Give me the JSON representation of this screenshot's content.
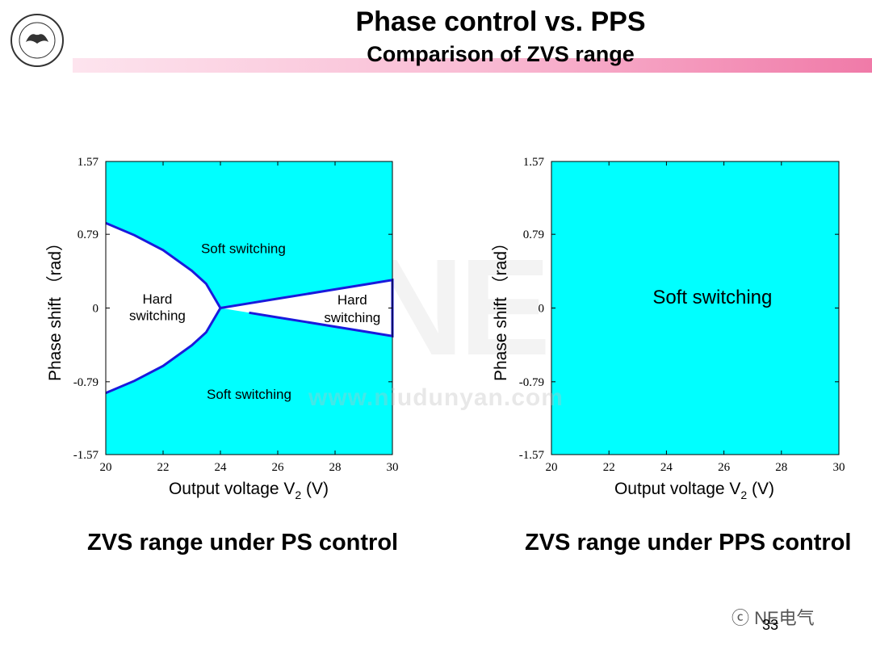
{
  "header": {
    "title": "Phase control vs. PPS",
    "subtitle": "Comparison of ZVS range"
  },
  "captions": {
    "left": "ZVS range under PS control",
    "right": "ZVS range under PPS control"
  },
  "watermark": {
    "text": "www.niudunyan.com",
    "logo_text": "NE"
  },
  "footer": {
    "brand": "NE电气",
    "page_number": "33"
  },
  "colors": {
    "soft_region": "#00ffff",
    "boundary": "#1a1adc",
    "hard_region": "#ffffff",
    "header_band": "#f07aa8"
  },
  "chart_data": [
    {
      "type": "area",
      "title": "",
      "xlabel_main": "Output voltage V",
      "xlabel_sub": "2",
      "xlabel_unit": " (V)",
      "ylabel": "Phase shift （rad）",
      "xlim": [
        20,
        30
      ],
      "ylim": [
        -1.57,
        1.57
      ],
      "x_ticks": [
        "20",
        "22",
        "24",
        "26",
        "28",
        "30"
      ],
      "y_ticks": [
        "1.57",
        "0.79",
        "0",
        "-0.79",
        "-1.57"
      ],
      "y_tick_values": [
        1.57,
        0.79,
        0,
        -0.79,
        -1.57
      ],
      "boundary": {
        "left_branch": {
          "x": [
            20,
            21,
            22,
            23,
            23.5,
            24
          ],
          "y": [
            0.91,
            0.78,
            0.62,
            0.4,
            0.26,
            0
          ]
        },
        "right_branch": {
          "x": [
            24,
            25,
            26,
            27,
            28,
            29,
            30
          ],
          "y": [
            0,
            0.05,
            0.1,
            0.15,
            0.2,
            0.25,
            0.3
          ]
        }
      },
      "annotations": [
        {
          "text": "Soft switching",
          "x": 24.8,
          "y": 0.64
        },
        {
          "text": "Hard",
          "x": 21.8,
          "y": 0.1
        },
        {
          "text": "switching",
          "x": 21.8,
          "y": -0.08
        },
        {
          "text": "Hard",
          "x": 28.6,
          "y": 0.09
        },
        {
          "text": "switching",
          "x": 28.6,
          "y": -0.1
        },
        {
          "text": "Soft switching",
          "x": 25.0,
          "y": -0.92
        }
      ]
    },
    {
      "type": "area",
      "title": "",
      "xlabel_main": "Output voltage V",
      "xlabel_sub": "2",
      "xlabel_unit": " (V)",
      "ylabel": "Phase shift （rad）",
      "xlim": [
        20,
        30
      ],
      "ylim": [
        -1.57,
        1.57
      ],
      "x_ticks": [
        "20",
        "22",
        "24",
        "26",
        "28",
        "30"
      ],
      "y_ticks": [
        "1.57",
        "0.79",
        "0",
        "-0.79",
        "-1.57"
      ],
      "y_tick_values": [
        1.57,
        0.79,
        0,
        -0.79,
        -1.57
      ],
      "annotations": [
        {
          "text": "Soft switching",
          "x": 25.6,
          "y": 0.1
        }
      ]
    }
  ]
}
